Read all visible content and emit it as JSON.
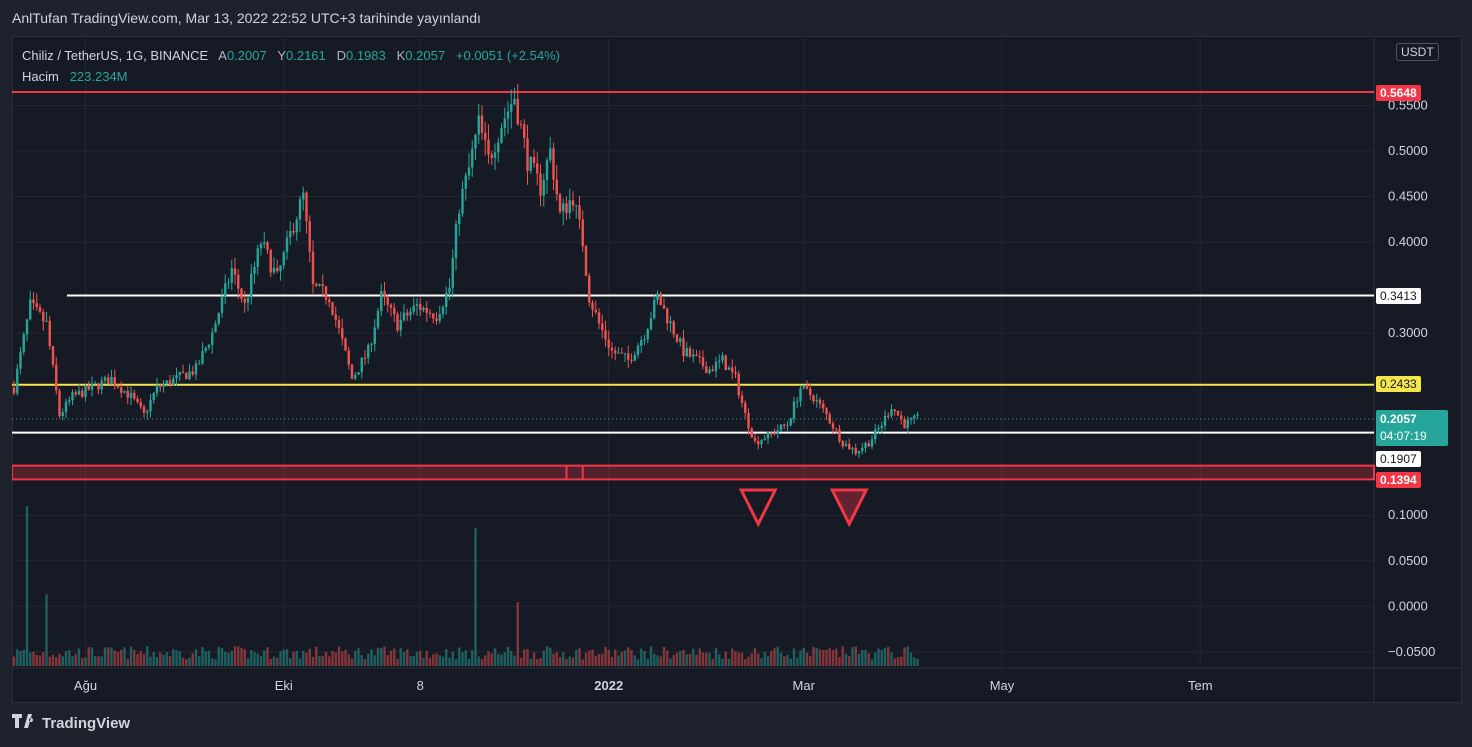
{
  "header": {
    "publisher_line": "AnlTufan TradingView.com, Mar 13, 2022 22:52 UTC+3 tarihinde yayınlandı"
  },
  "legend": {
    "symbol": "Chiliz / TetherUS, 1G, BINANCE",
    "open_label": "A",
    "open": "0.2007",
    "high_label": "Y",
    "high": "0.2161",
    "low_label": "D",
    "low": "0.1983",
    "close_label": "K",
    "close": "0.2057",
    "change": "+0.0051 (+2.54%)",
    "volume_label": "Hacim",
    "volume": "223.234M"
  },
  "currency": "USDT",
  "price_badges": {
    "resistance_top": "0.5648",
    "white_upper": "0.3413",
    "yellow": "0.2433",
    "current_price": "0.2057",
    "countdown": "04:07:19",
    "white_lower": "0.1907",
    "red_zone_bottom": "0.1394"
  },
  "footer": {
    "brand": "TradingView"
  },
  "colors": {
    "up": "#26a69a",
    "down": "#ef5350",
    "resistance": "#f23645",
    "yellow": "#f7e64b",
    "white": "#ffffff",
    "background": "#161a25"
  },
  "chart_data": {
    "type": "candlestick",
    "title": "",
    "xlabel": "",
    "ylabel": "",
    "y_tick_labels": [
      "0.5500",
      "0.5000",
      "0.4500",
      "0.4000",
      "0.3000",
      "0.1000",
      "0.0500",
      "0.0000",
      "−0.0500"
    ],
    "y_ticks": [
      0.55,
      0.5,
      0.45,
      0.4,
      0.3,
      0.1,
      0.05,
      0.0,
      -0.05
    ],
    "ylim": [
      -0.065,
      0.62
    ],
    "x_tick_labels": [
      "Ağu",
      "Eki",
      "8",
      "2022",
      "Mar",
      "May",
      "Tem"
    ],
    "x_ticks_day": [
      22,
      83,
      125,
      183,
      243,
      304,
      365
    ],
    "horizontal_levels": [
      {
        "price": 0.5648,
        "color": "red",
        "label": "0.5648"
      },
      {
        "price": 0.3413,
        "color": "white",
        "label": "0.3413"
      },
      {
        "price": 0.2433,
        "color": "yellow",
        "label": "0.2433"
      },
      {
        "price": 0.1907,
        "color": "white",
        "label": "0.1907"
      }
    ],
    "zone": {
      "top": 0.1545,
      "bottom": 0.1394,
      "label": "0.1394"
    },
    "markers": [
      {
        "type": "down-triangle",
        "day": 229
      },
      {
        "type": "down-triangle",
        "day": 257
      }
    ],
    "series": [
      {
        "values": [
          [
            0,
            0.24
          ],
          [
            5,
            0.33
          ],
          [
            10,
            0.31
          ],
          [
            14,
            0.21
          ],
          [
            18,
            0.23
          ],
          [
            24,
            0.24
          ],
          [
            30,
            0.25
          ],
          [
            36,
            0.23
          ],
          [
            40,
            0.21
          ],
          [
            44,
            0.24
          ],
          [
            50,
            0.25
          ],
          [
            56,
            0.26
          ],
          [
            61,
            0.3
          ],
          [
            67,
            0.37
          ],
          [
            71,
            0.33
          ],
          [
            76,
            0.4
          ],
          [
            81,
            0.36
          ],
          [
            86,
            0.42
          ],
          [
            89,
            0.45
          ],
          [
            92,
            0.35
          ],
          [
            97,
            0.34
          ],
          [
            101,
            0.29
          ],
          [
            104,
            0.25
          ],
          [
            109,
            0.28
          ],
          [
            113,
            0.34
          ],
          [
            118,
            0.31
          ],
          [
            124,
            0.33
          ],
          [
            130,
            0.32
          ],
          [
            134,
            0.35
          ],
          [
            137,
            0.44
          ],
          [
            140,
            0.48
          ],
          [
            143,
            0.53
          ],
          [
            146,
            0.49
          ],
          [
            150,
            0.53
          ],
          [
            154,
            0.56
          ],
          [
            158,
            0.49
          ],
          [
            162,
            0.46
          ],
          [
            165,
            0.5
          ],
          [
            168,
            0.43
          ],
          [
            172,
            0.45
          ],
          [
            175,
            0.4
          ],
          [
            177,
            0.34
          ],
          [
            180,
            0.31
          ],
          [
            184,
            0.28
          ],
          [
            189,
            0.27
          ],
          [
            194,
            0.3
          ],
          [
            198,
            0.34
          ],
          [
            202,
            0.31
          ],
          [
            206,
            0.28
          ],
          [
            210,
            0.27
          ],
          [
            214,
            0.26
          ],
          [
            218,
            0.27
          ],
          [
            222,
            0.25
          ],
          [
            225,
            0.21
          ],
          [
            228,
            0.18
          ],
          [
            233,
            0.19
          ],
          [
            238,
            0.2
          ],
          [
            242,
            0.24
          ],
          [
            246,
            0.23
          ],
          [
            250,
            0.21
          ],
          [
            255,
            0.18
          ],
          [
            259,
            0.17
          ],
          [
            263,
            0.18
          ],
          [
            267,
            0.2
          ],
          [
            270,
            0.22
          ],
          [
            274,
            0.2
          ],
          [
            278,
            0.2057
          ]
        ]
      }
    ],
    "volume_peaks_M": [
      {
        "day": 4,
        "value": 1450
      },
      {
        "day": 10,
        "value": 650
      },
      {
        "day": 142,
        "value": 1250
      },
      {
        "day": 155,
        "value": 580
      },
      {
        "day": 234,
        "value": 160
      },
      {
        "day": 258,
        "value": 170
      }
    ]
  }
}
